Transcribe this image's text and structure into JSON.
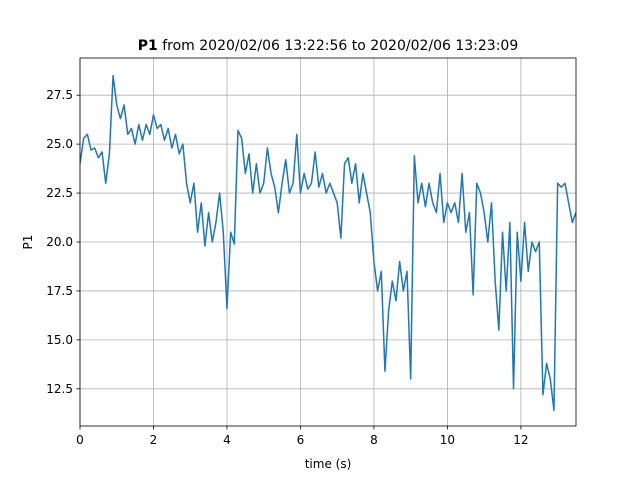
{
  "chart_data": {
    "type": "line",
    "title": {
      "variable": "P1",
      "text": "from 2020/02/06 13:22:56 to 2020/02/06 13:23:09"
    },
    "xlabel": "time (s)",
    "ylabel": "P1",
    "x": [
      0,
      0.1,
      0.2,
      0.3,
      0.4,
      0.5,
      0.6,
      0.7,
      0.8,
      0.9,
      1,
      1.1,
      1.2,
      1.3,
      1.4,
      1.5,
      1.6,
      1.7,
      1.8,
      1.9,
      2,
      2.1,
      2.2,
      2.3,
      2.4,
      2.5,
      2.6,
      2.7,
      2.8,
      2.9,
      3,
      3.1,
      3.2,
      3.3,
      3.4,
      3.5,
      3.6,
      3.7,
      3.8,
      3.9,
      4,
      4.1,
      4.2,
      4.3,
      4.4,
      4.5,
      4.6,
      4.7,
      4.8,
      4.9,
      5,
      5.1,
      5.2,
      5.3,
      5.4,
      5.5,
      5.6,
      5.7,
      5.8,
      5.9,
      6,
      6.1,
      6.2,
      6.3,
      6.4,
      6.5,
      6.6,
      6.7,
      6.8,
      6.9,
      7,
      7.1,
      7.2,
      7.3,
      7.4,
      7.5,
      7.6,
      7.7,
      7.8,
      7.9,
      8,
      8.1,
      8.2,
      8.3,
      8.4,
      8.5,
      8.6,
      8.7,
      8.8,
      8.9,
      9,
      9.1,
      9.2,
      9.3,
      9.4,
      9.5,
      9.6,
      9.7,
      9.8,
      9.9,
      10,
      10.1,
      10.2,
      10.3,
      10.4,
      10.5,
      10.6,
      10.7,
      10.8,
      10.9,
      11,
      11.1,
      11.2,
      11.3,
      11.4,
      11.5,
      11.6,
      11.7,
      11.8,
      11.9,
      12,
      12.1,
      12.2,
      12.3,
      12.4,
      12.5,
      12.6,
      12.7,
      12.8,
      12.9,
      13,
      13.1,
      13.2,
      13.3,
      13.4,
      13.5
    ],
    "series": [
      {
        "name": "P1",
        "color": "#1f77b4",
        "values": [
          24.0,
          25.3,
          25.5,
          24.7,
          24.8,
          24.3,
          24.6,
          23.0,
          24.5,
          28.5,
          27.0,
          26.3,
          27.0,
          25.5,
          25.8,
          25.0,
          26.0,
          25.2,
          26.0,
          25.5,
          26.5,
          25.8,
          26.0,
          25.2,
          25.8,
          24.8,
          25.5,
          24.5,
          25.0,
          23.0,
          22.0,
          23.0,
          20.5,
          22.0,
          19.8,
          21.5,
          20.0,
          21.0,
          22.5,
          20.5,
          16.6,
          20.5,
          19.9,
          25.7,
          25.3,
          23.5,
          24.5,
          22.5,
          24.0,
          22.5,
          23.0,
          24.8,
          23.5,
          22.8,
          21.5,
          23.0,
          24.2,
          22.5,
          23.0,
          25.5,
          22.5,
          23.5,
          22.7,
          23.0,
          24.6,
          22.8,
          23.5,
          22.5,
          23.0,
          22.5,
          22.0,
          20.2,
          24.0,
          24.3,
          23.0,
          24.0,
          22.0,
          23.5,
          22.5,
          21.5,
          19.0,
          17.5,
          18.5,
          13.4,
          16.5,
          18.0,
          17.0,
          19.0,
          17.5,
          18.5,
          13.0,
          24.4,
          22.0,
          23.0,
          21.8,
          23.0,
          22.0,
          21.5,
          23.5,
          21.0,
          22.0,
          21.5,
          22.0,
          21.0,
          23.5,
          20.5,
          21.5,
          17.3,
          23.0,
          22.5,
          21.5,
          20.0,
          22.0,
          18.0,
          15.5,
          20.5,
          17.5,
          21.0,
          12.5,
          20.5,
          18.0,
          21.0,
          18.5,
          20.0,
          19.5,
          20.0,
          12.2,
          13.8,
          13.0,
          11.4,
          23.0,
          22.8,
          23.0,
          22.0,
          21.0,
          21.5
        ]
      }
    ],
    "xlim": [
      0,
      13.5
    ],
    "xticks": [
      0,
      2,
      4,
      6,
      8,
      10,
      12
    ],
    "ylim": [
      10.6,
      29.4
    ],
    "yticks": [
      12.5,
      {
        "value": 15,
        "label": "15.0"
      },
      17.5,
      {
        "value": 20,
        "label": "20.0"
      },
      22.5,
      {
        "value": 25,
        "label": "25.0"
      },
      27.5
    ],
    "grid": true
  }
}
